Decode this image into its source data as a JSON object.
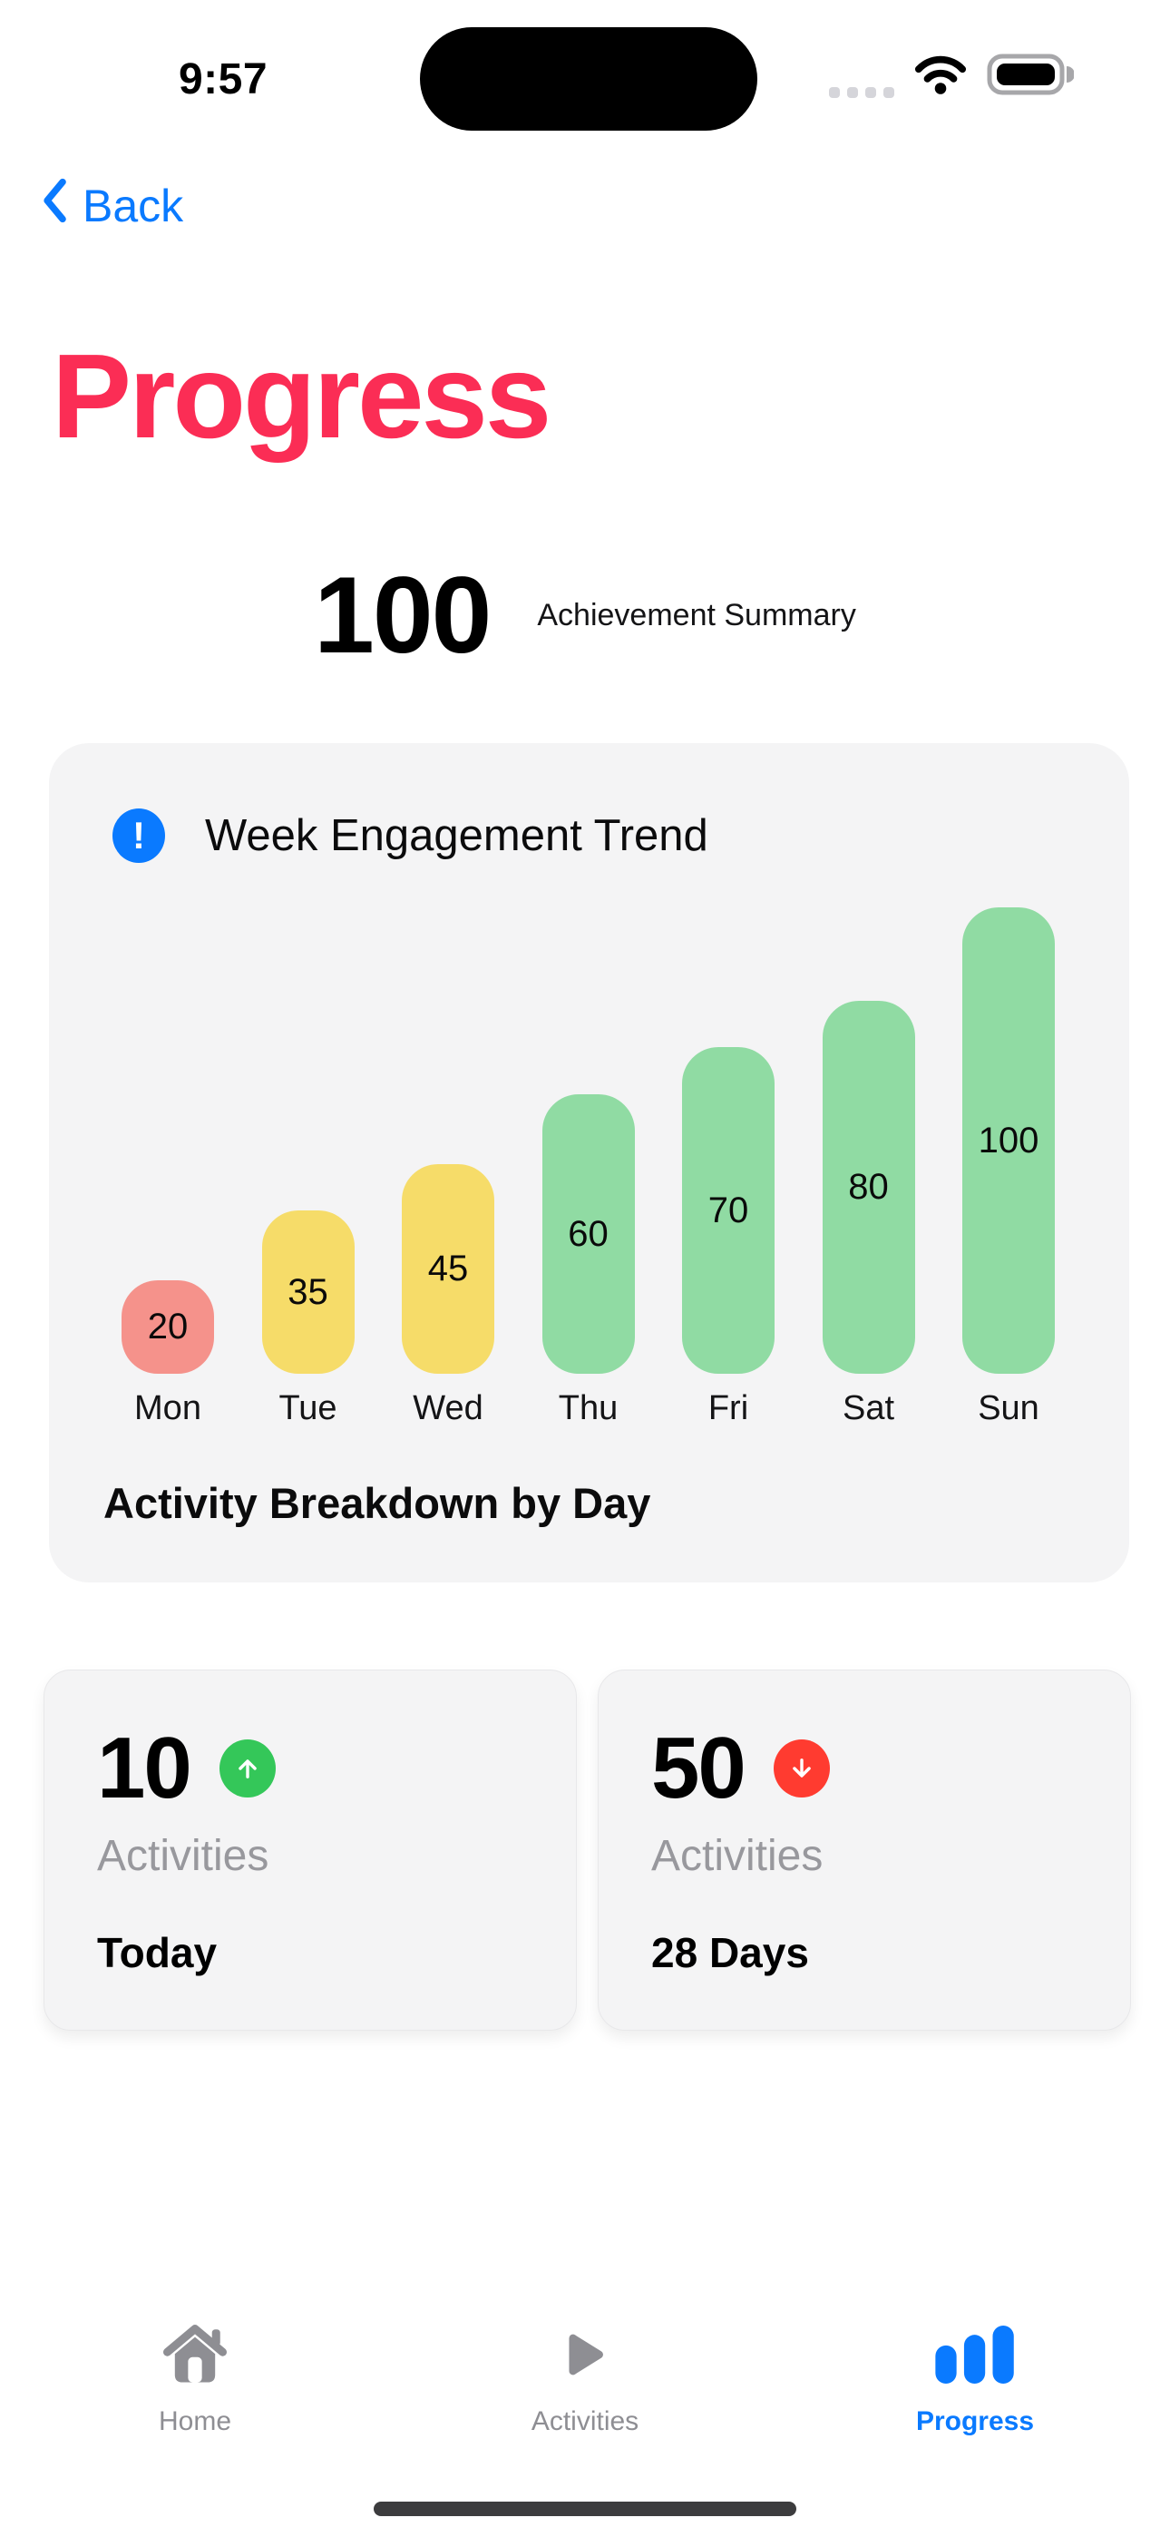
{
  "status_bar": {
    "time": "9:57"
  },
  "nav": {
    "back_label": "Back"
  },
  "page": {
    "title": "Progress"
  },
  "summary": {
    "value": "100",
    "label": "Achievement Summary"
  },
  "chart_card": {
    "icon": "alert-info-icon",
    "title": "Week Engagement Trend",
    "footer": "Activity Breakdown by Day"
  },
  "chart_data": {
    "type": "bar",
    "title": "Week Engagement Trend",
    "caption": "Activity Breakdown by Day",
    "categories": [
      "Mon",
      "Tue",
      "Wed",
      "Thu",
      "Fri",
      "Sat",
      "Sun"
    ],
    "values": [
      20,
      35,
      45,
      60,
      70,
      80,
      100
    ],
    "bar_colors": [
      "#F5928B",
      "#F6DC69",
      "#F6DC69",
      "#90DBA3",
      "#90DBA3",
      "#90DBA3",
      "#90DBA3"
    ],
    "value_labels_shown": true,
    "xlabel": "",
    "ylabel": "",
    "ylim": [
      0,
      100
    ],
    "grid": false,
    "legend": "none"
  },
  "stat_cards": [
    {
      "value": "10",
      "label": "Activities",
      "period": "Today",
      "trend": "up",
      "trend_color": "#34C759"
    },
    {
      "value": "50",
      "label": "Activities",
      "period": "28 Days",
      "trend": "down",
      "trend_color": "#FF3B30"
    }
  ],
  "tab_bar": {
    "items": [
      {
        "label": "Home",
        "icon": "home-icon",
        "active": false
      },
      {
        "label": "Activities",
        "icon": "play-icon",
        "active": false
      },
      {
        "label": "Progress",
        "icon": "bar-chart-icon",
        "active": true
      }
    ],
    "active_color": "#0A7AFF",
    "inactive_color": "#8E8E93"
  },
  "colors": {
    "page_title": "#FB2D55",
    "accent_blue": "#0A7AFF",
    "card_background": "#F4F4F5",
    "bar_low": "#F5928B",
    "bar_mid": "#F6DC69",
    "bar_high": "#90DBA3",
    "trend_up": "#34C759",
    "trend_down": "#FF3B30"
  }
}
